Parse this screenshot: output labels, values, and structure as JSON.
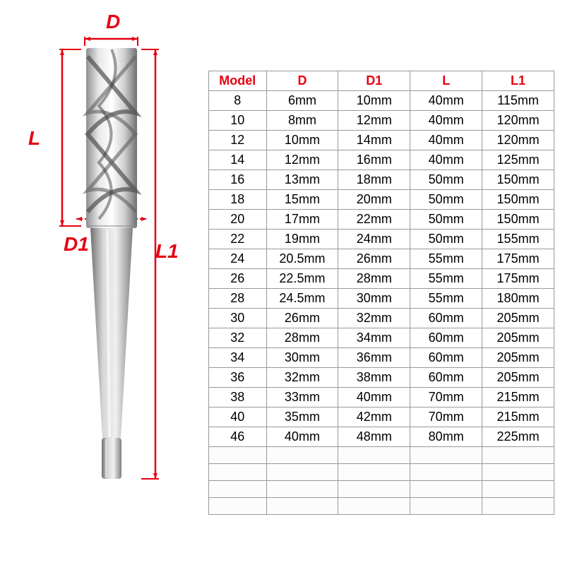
{
  "diagram": {
    "labels": {
      "d": "D",
      "d1": "D1",
      "l": "L",
      "l1": "L1"
    },
    "label_color": "#e60012",
    "label_fontsize": 28,
    "arrow_color": "#e60012",
    "tool_colors": {
      "light": "#f0f0f0",
      "mid": "#c8c8c8",
      "dark": "#808080",
      "darker": "#606060",
      "darkest": "#404040"
    }
  },
  "table": {
    "header_color": "#e60012",
    "cell_color": "#000000",
    "border_color": "#999999",
    "header_fontsize": 18,
    "cell_fontsize": 18,
    "columns": [
      "Model",
      "D",
      "D1",
      "L",
      "L1"
    ],
    "rows": [
      [
        "8",
        "6mm",
        "10mm",
        "40mm",
        "115mm"
      ],
      [
        "10",
        "8mm",
        "12mm",
        "40mm",
        "120mm"
      ],
      [
        "12",
        "10mm",
        "14mm",
        "40mm",
        "120mm"
      ],
      [
        "14",
        "12mm",
        "16mm",
        "40mm",
        "125mm"
      ],
      [
        "16",
        "13mm",
        "18mm",
        "50mm",
        "150mm"
      ],
      [
        "18",
        "15mm",
        "20mm",
        "50mm",
        "150mm"
      ],
      [
        "20",
        "17mm",
        "22mm",
        "50mm",
        "150mm"
      ],
      [
        "22",
        "19mm",
        "24mm",
        "50mm",
        "155mm"
      ],
      [
        "24",
        "20.5mm",
        "26mm",
        "55mm",
        "175mm"
      ],
      [
        "26",
        "22.5mm",
        "28mm",
        "55mm",
        "175mm"
      ],
      [
        "28",
        "24.5mm",
        "30mm",
        "55mm",
        "180mm"
      ],
      [
        "30",
        "26mm",
        "32mm",
        "60mm",
        "205mm"
      ],
      [
        "32",
        "28mm",
        "34mm",
        "60mm",
        "205mm"
      ],
      [
        "34",
        "30mm",
        "36mm",
        "60mm",
        "205mm"
      ],
      [
        "36",
        "32mm",
        "38mm",
        "60mm",
        "205mm"
      ],
      [
        "38",
        "33mm",
        "40mm",
        "70mm",
        "215mm"
      ],
      [
        "40",
        "35mm",
        "42mm",
        "70mm",
        "215mm"
      ],
      [
        "46",
        "40mm",
        "48mm",
        "80mm",
        "225mm"
      ]
    ],
    "empty_rows": 4
  }
}
